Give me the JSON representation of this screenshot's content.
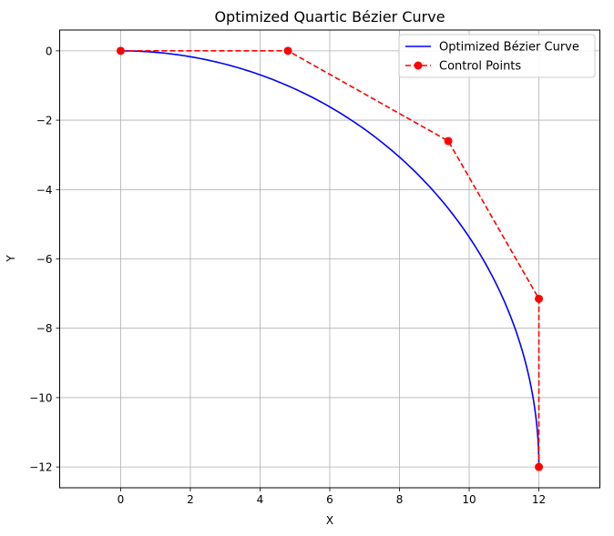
{
  "chart_data": {
    "type": "line",
    "title": "Optimized Quartic Bézier Curve",
    "xlabel": "X",
    "ylabel": "Y",
    "xlim": [
      -1.75,
      13.75
    ],
    "ylim": [
      -12.6,
      0.6
    ],
    "xticks": [
      0,
      2,
      4,
      6,
      8,
      10,
      12
    ],
    "yticks": [
      0,
      -2,
      -4,
      -6,
      -8,
      -10,
      -12
    ],
    "grid": true,
    "legend_position": "top-right",
    "control_points": [
      [
        0,
        0
      ],
      [
        4.8,
        0
      ],
      [
        9.4,
        -2.6
      ],
      [
        12,
        -7.15
      ],
      [
        12,
        -12
      ]
    ],
    "series": [
      {
        "name": "Optimized Bézier Curve",
        "kind": "bezier",
        "color": "#0000ff",
        "style": "solid"
      },
      {
        "name": "Control Points",
        "kind": "polyline-markers",
        "color": "#ff0000",
        "style": "dashed",
        "marker": "circle"
      }
    ]
  }
}
